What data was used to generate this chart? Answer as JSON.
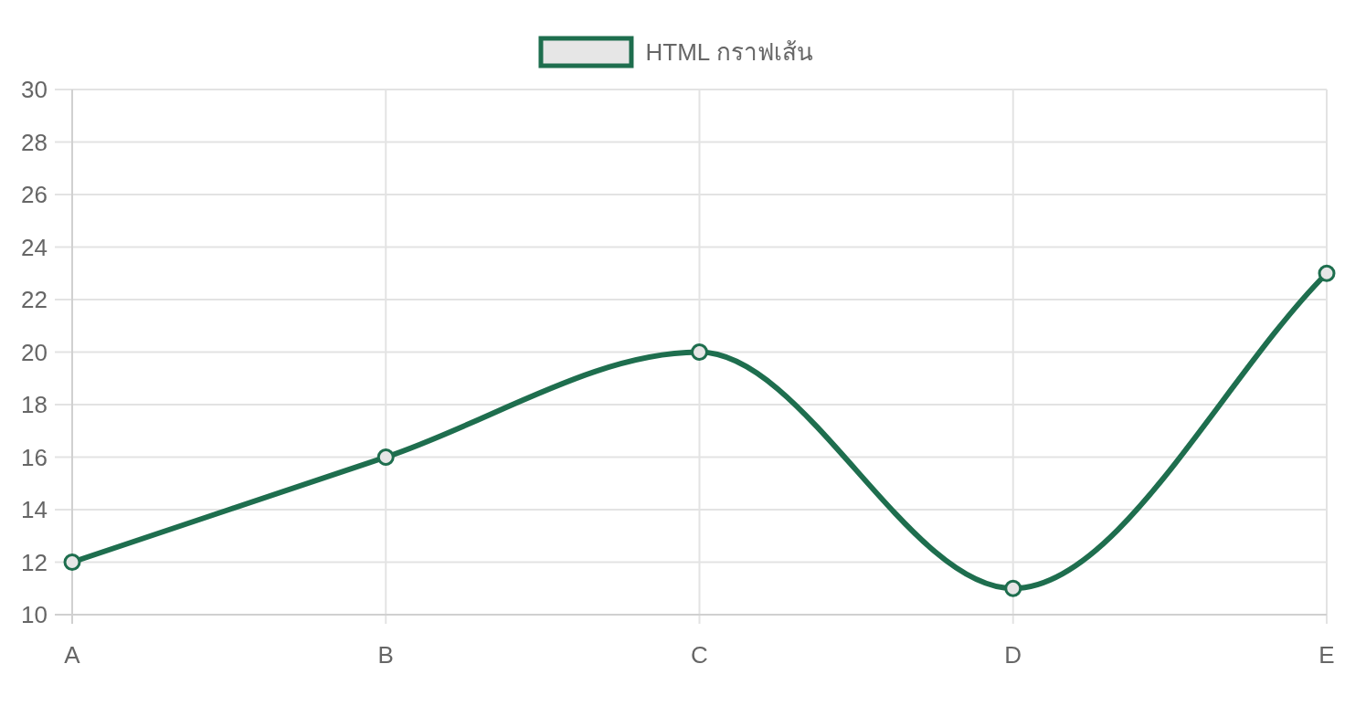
{
  "chart_data": {
    "type": "line",
    "categories": [
      "A",
      "B",
      "C",
      "D",
      "E"
    ],
    "series": [
      {
        "name": "HTML กราฟเส้น",
        "color": "#1e6e4e",
        "values": [
          12,
          16,
          20,
          11,
          23
        ]
      }
    ],
    "ylim": [
      10,
      30
    ],
    "yticks": [
      10,
      12,
      14,
      16,
      18,
      20,
      22,
      24,
      26,
      28,
      30
    ],
    "grid": true,
    "legend": "top",
    "marker": "circle",
    "line_style": "solid"
  }
}
